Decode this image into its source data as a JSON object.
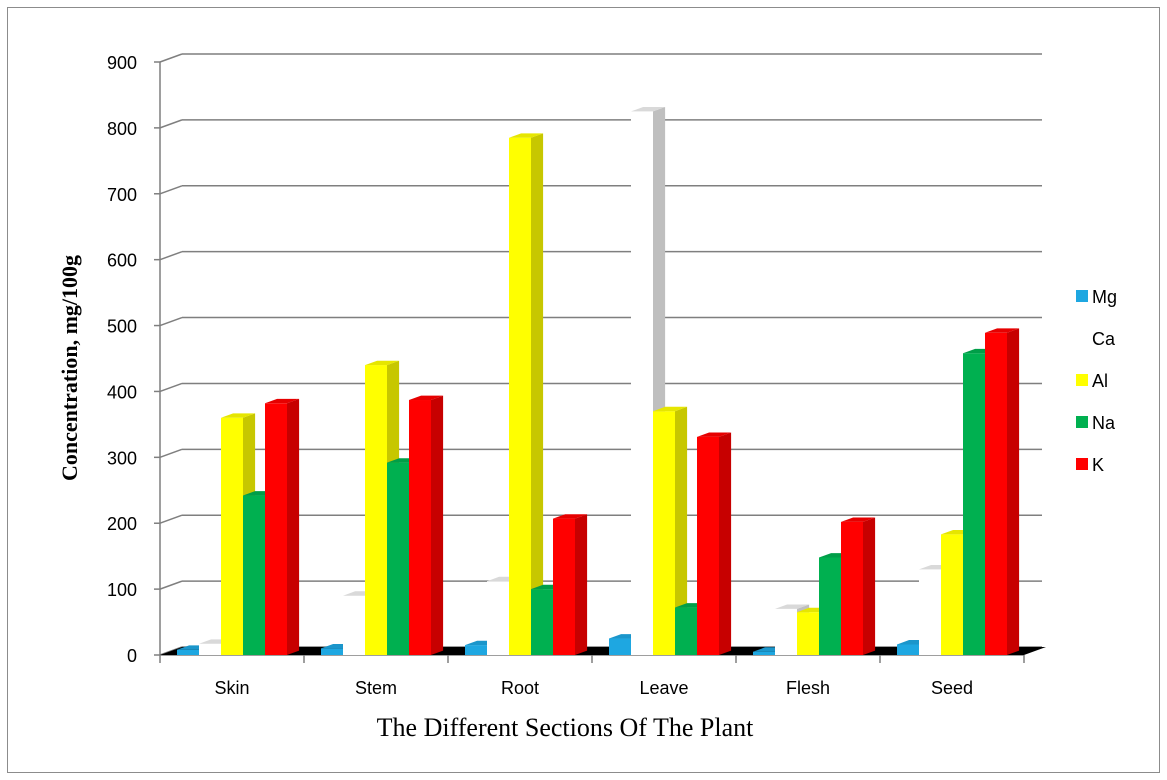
{
  "chart_data": {
    "type": "bar",
    "style": "3d-clustered-column",
    "title": "",
    "xlabel": "The Different Sections Of The Plant",
    "ylabel": "Concentration, mg/100g",
    "ylim": [
      0,
      900
    ],
    "yticks": [
      "0",
      "100",
      "200",
      "300",
      "400",
      "500",
      "600",
      "700",
      "800",
      "900"
    ],
    "ytick_values": [
      0,
      100,
      200,
      300,
      400,
      500,
      600,
      700,
      800,
      900
    ],
    "grid": true,
    "legend_position": "right",
    "categories": [
      "Skin",
      "Stem",
      "Root",
      "Leave",
      "Flesh",
      "Seed"
    ],
    "series": [
      {
        "name": "Mg",
        "color": "#1ea7e1",
        "values": [
          8,
          10,
          15,
          25,
          5,
          16
        ]
      },
      {
        "name": "Ca",
        "color": "#ffffff",
        "values": [
          17,
          90,
          112,
          825,
          70,
          130
        ]
      },
      {
        "name": "Al",
        "color": "#ffff00",
        "values": [
          360,
          440,
          785,
          370,
          65,
          183
        ]
      },
      {
        "name": "Na",
        "color": "#00b050",
        "values": [
          242,
          292,
          100,
          72,
          148,
          458
        ]
      },
      {
        "name": "K",
        "color": "#ff0000",
        "values": [
          382,
          387,
          207,
          331,
          202,
          489
        ]
      }
    ]
  }
}
